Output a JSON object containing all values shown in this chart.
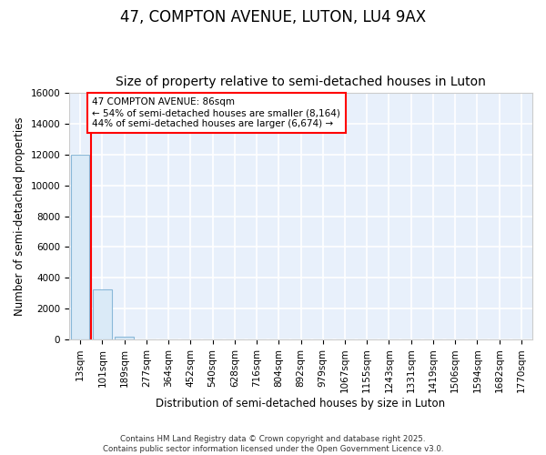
{
  "title": "47, COMPTON AVENUE, LUTON, LU4 9AX",
  "subtitle": "Size of property relative to semi-detached houses in Luton",
  "xlabel": "Distribution of semi-detached houses by size in Luton",
  "ylabel": "Number of semi-detached properties",
  "footer_line1": "Contains HM Land Registry data © Crown copyright and database right 2025.",
  "footer_line2": "Contains public sector information licensed under the Open Government Licence v3.0.",
  "categories": [
    "13sqm",
    "101sqm",
    "189sqm",
    "277sqm",
    "364sqm",
    "452sqm",
    "540sqm",
    "628sqm",
    "716sqm",
    "804sqm",
    "892sqm",
    "979sqm",
    "1067sqm",
    "1155sqm",
    "1243sqm",
    "1331sqm",
    "1419sqm",
    "1506sqm",
    "1594sqm",
    "1682sqm",
    "1770sqm"
  ],
  "values": [
    12000,
    3250,
    150,
    0,
    0,
    0,
    0,
    0,
    0,
    0,
    0,
    0,
    0,
    0,
    0,
    0,
    0,
    0,
    0,
    0,
    0
  ],
  "bar_color": "#daeaf7",
  "bar_edge_color": "#8ab8d8",
  "annotation_text": "47 COMPTON AVENUE: 86sqm\n← 54% of semi-detached houses are smaller (8,164)\n44% of semi-detached houses are larger (6,674) →",
  "redline_x": 0.5,
  "ylim": [
    0,
    16000
  ],
  "yticks": [
    0,
    2000,
    4000,
    6000,
    8000,
    10000,
    12000,
    14000,
    16000
  ],
  "plot_bg_color": "#e8f0fb",
  "fig_bg_color": "#ffffff",
  "grid_color": "#ffffff",
  "title_fontsize": 12,
  "subtitle_fontsize": 10,
  "axis_label_fontsize": 8.5,
  "tick_fontsize": 7.5
}
